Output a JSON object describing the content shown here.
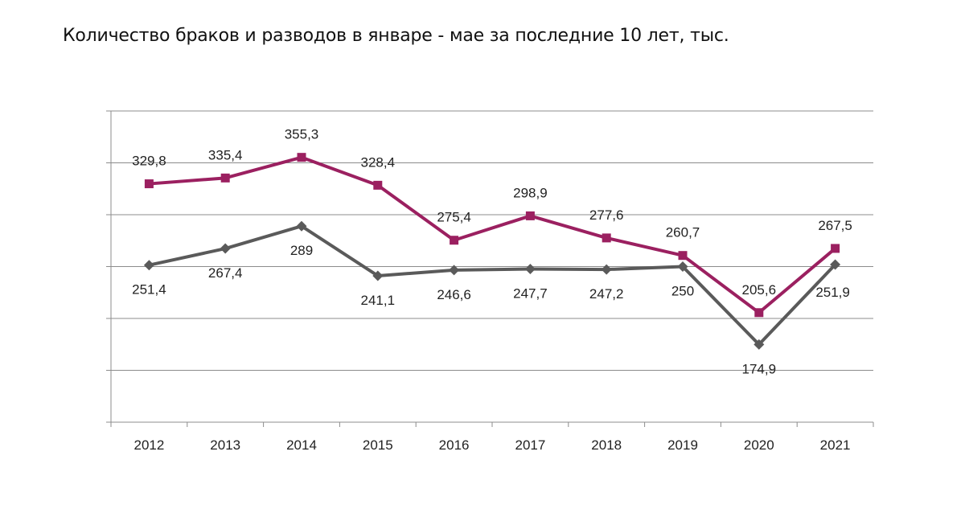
{
  "title": "Количество браков и разводов в январе - мае за последние 10 лет, тыс.",
  "chart_data": {
    "type": "line",
    "title": "Количество браков и разводов в январе - мае за последние 10 лет, тыс.",
    "categories": [
      "2012",
      "2013",
      "2014",
      "2015",
      "2016",
      "2017",
      "2018",
      "2019",
      "2020",
      "2021"
    ],
    "ylim": [
      100,
      400
    ],
    "grid": true,
    "series": [
      {
        "values": [
          329.8,
          335.4,
          355.3,
          328.4,
          275.4,
          298.9,
          277.6,
          260.7,
          205.6,
          267.5
        ],
        "labels": [
          "329,8",
          "335,4",
          "355,3",
          "328,4",
          "275,4",
          "298,9",
          "277,6",
          "260,7",
          "205,6",
          "267,5"
        ],
        "color": "#9b2060",
        "marker": "square"
      },
      {
        "values": [
          251.4,
          267.4,
          289,
          241.1,
          246.6,
          247.7,
          247.2,
          250,
          174.9,
          251.9
        ],
        "labels": [
          "251,4",
          "267,4",
          "289",
          "241,1",
          "246,6",
          "247,7",
          "247,2",
          "250",
          "174,9",
          "251,9"
        ],
        "color": "#5a5a5a",
        "marker": "diamond"
      }
    ]
  }
}
